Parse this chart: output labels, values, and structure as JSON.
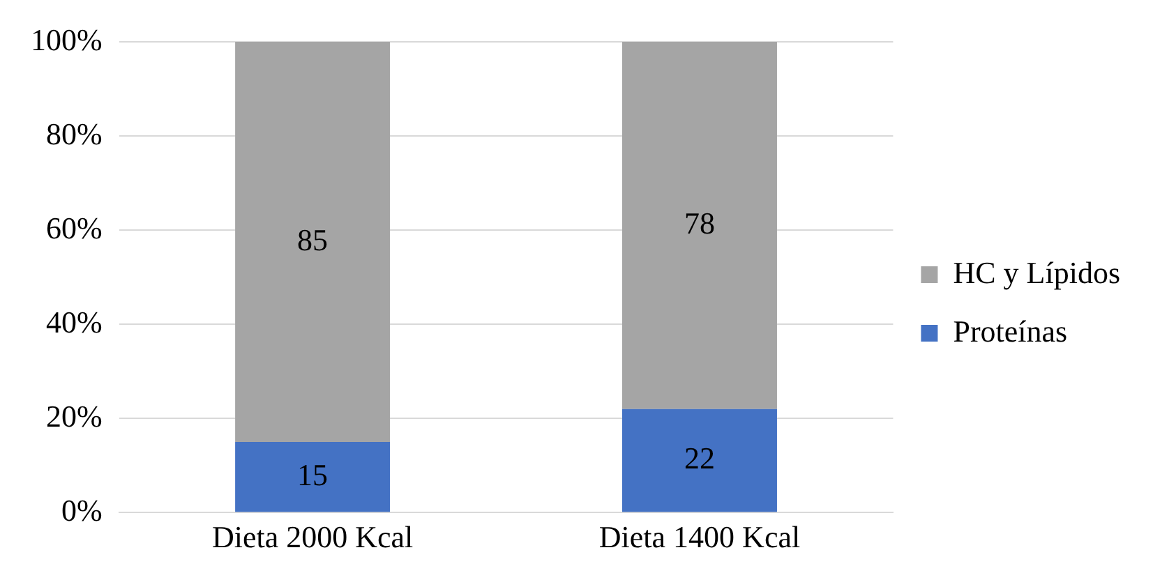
{
  "chart_data": {
    "type": "bar",
    "stacked": true,
    "categories": [
      "Dieta 2000 Kcal",
      "Dieta 1400 Kcal"
    ],
    "series": [
      {
        "name": "Proteínas",
        "color": "#4472c4",
        "values": [
          15,
          22
        ]
      },
      {
        "name": "HC y Lípidos",
        "color": "#a5a5a5",
        "values": [
          85,
          78
        ]
      }
    ],
    "ylim": [
      0,
      100
    ],
    "yticks": [
      {
        "value": 0,
        "label": "0%"
      },
      {
        "value": 20,
        "label": "20%"
      },
      {
        "value": 40,
        "label": "40%"
      },
      {
        "value": 60,
        "label": "60%"
      },
      {
        "value": 80,
        "label": "80%"
      },
      {
        "value": 100,
        "label": "100%"
      }
    ],
    "grid": "y",
    "legend": "right",
    "data_labels": true
  }
}
